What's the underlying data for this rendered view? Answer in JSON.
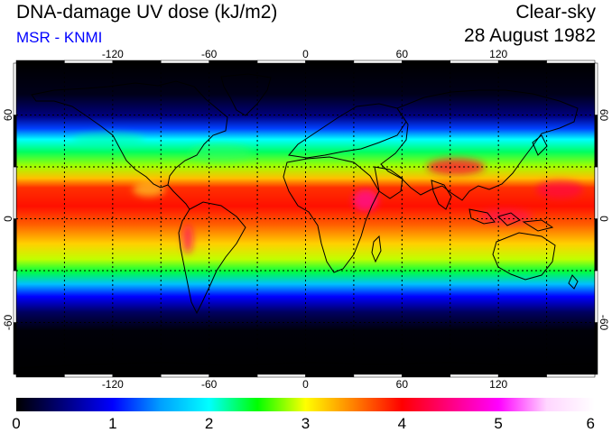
{
  "header": {
    "title": "DNA-damage UV dose (kJ/m2)",
    "subtitle": "MSR - KNMI",
    "condition": "Clear-sky",
    "date": "28 August 1982"
  },
  "map": {
    "lon_ticks_top": [
      "-120",
      "-60",
      "0",
      "60",
      "120"
    ],
    "lon_ticks_bottom": [
      "-120",
      "-60",
      "0",
      "60",
      "120"
    ],
    "lat_ticks_left": [
      "60",
      "0",
      "-60"
    ],
    "lat_ticks_right": [
      "60",
      "0",
      "-60"
    ],
    "gridlines": true,
    "projection": "equirectangular"
  },
  "colorbar": {
    "labels": [
      "0",
      "1",
      "2",
      "3",
      "4",
      "5",
      "6"
    ],
    "range": [
      0,
      6
    ],
    "colors": [
      "#000000",
      "#00007f",
      "#0000ff",
      "#00a0ff",
      "#00ffff",
      "#00ff00",
      "#ffff00",
      "#ff8000",
      "#ff0000",
      "#ff0080",
      "#ff00ff",
      "#ffd6ff",
      "#ffffff"
    ]
  }
}
